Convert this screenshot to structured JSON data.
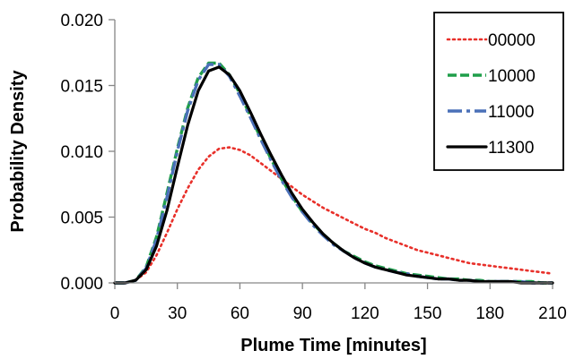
{
  "chart_data": {
    "type": "line",
    "title": "",
    "xlabel": "Plume Time [minutes]",
    "ylabel": "Probability Density",
    "xlim": [
      0,
      210
    ],
    "ylim": [
      0,
      0.02
    ],
    "x_ticks": [
      "0",
      "30",
      "60",
      "90",
      "120",
      "150",
      "180",
      "210"
    ],
    "x_tick_values": [
      0,
      30,
      60,
      90,
      120,
      150,
      180,
      210
    ],
    "y_ticks": [
      "0.000",
      "0.005",
      "0.010",
      "0.015",
      "0.020"
    ],
    "y_tick_values": [
      0,
      0.005,
      0.01,
      0.015,
      0.02
    ],
    "grid": false,
    "legend_position": "top-right",
    "x": [
      0,
      5,
      10,
      15,
      20,
      25,
      30,
      35,
      40,
      45,
      50,
      55,
      60,
      65,
      70,
      75,
      80,
      85,
      90,
      95,
      100,
      105,
      110,
      115,
      120,
      125,
      130,
      135,
      140,
      145,
      150,
      155,
      160,
      165,
      170,
      175,
      180,
      185,
      190,
      195,
      200,
      205,
      210
    ],
    "series": [
      {
        "name": "00000",
        "color": "#e8302a",
        "style": "dotted",
        "values": [
          0,
          0,
          0.0002,
          0.0008,
          0.0021,
          0.0038,
          0.0056,
          0.0072,
          0.0086,
          0.0096,
          0.0102,
          0.0103,
          0.0101,
          0.0097,
          0.0091,
          0.0085,
          0.0079,
          0.0073,
          0.0067,
          0.0062,
          0.0057,
          0.0053,
          0.0049,
          0.0045,
          0.0041,
          0.0038,
          0.0034,
          0.0031,
          0.0028,
          0.0025,
          0.0023,
          0.0021,
          0.0019,
          0.0017,
          0.0015,
          0.0014,
          0.0013,
          0.0012,
          0.0011,
          0.001,
          0.0009,
          0.0008,
          0.0007
        ]
      },
      {
        "name": "10000",
        "color": "#1f9e4a",
        "style": "dashed",
        "values": [
          0,
          0,
          0.0002,
          0.0012,
          0.0035,
          0.0068,
          0.0102,
          0.0133,
          0.0156,
          0.0167,
          0.0167,
          0.0158,
          0.0144,
          0.0127,
          0.011,
          0.0094,
          0.0079,
          0.0066,
          0.0054,
          0.0045,
          0.0037,
          0.003,
          0.0024,
          0.002,
          0.0016,
          0.0013,
          0.0011,
          0.0009,
          0.0007,
          0.0006,
          0.0005,
          0.0004,
          0.0003,
          0.0003,
          0.0002,
          0.0002,
          0.0001,
          0.0001,
          0.0001,
          0.0001,
          0.0001,
          0,
          0
        ]
      },
      {
        "name": "11000",
        "color": "#4a70b8",
        "style": "dashdot",
        "values": [
          0,
          0,
          0.0002,
          0.0011,
          0.0033,
          0.0065,
          0.01,
          0.0131,
          0.0154,
          0.0166,
          0.0166,
          0.0157,
          0.0142,
          0.0126,
          0.0109,
          0.0093,
          0.0078,
          0.0065,
          0.0054,
          0.0044,
          0.0036,
          0.0029,
          0.0024,
          0.0019,
          0.0015,
          0.0012,
          0.001,
          0.0008,
          0.0007,
          0.0005,
          0.0004,
          0.0003,
          0.0003,
          0.0002,
          0.0002,
          0.0001,
          0.0001,
          0.0001,
          0.0001,
          0.0001,
          0,
          0,
          0
        ]
      },
      {
        "name": "11300",
        "color": "#000000",
        "style": "solid",
        "values": [
          0,
          0,
          0.0002,
          0.001,
          0.0028,
          0.0055,
          0.0088,
          0.012,
          0.0146,
          0.0161,
          0.0164,
          0.0158,
          0.0146,
          0.013,
          0.0113,
          0.0097,
          0.0082,
          0.0068,
          0.0056,
          0.0046,
          0.0037,
          0.003,
          0.0024,
          0.0019,
          0.0015,
          0.0012,
          0.001,
          0.0008,
          0.0006,
          0.0005,
          0.0004,
          0.0003,
          0.0003,
          0.0002,
          0.0002,
          0.0001,
          0.0001,
          0.0001,
          0.0001,
          0,
          0,
          0,
          0
        ]
      }
    ]
  }
}
